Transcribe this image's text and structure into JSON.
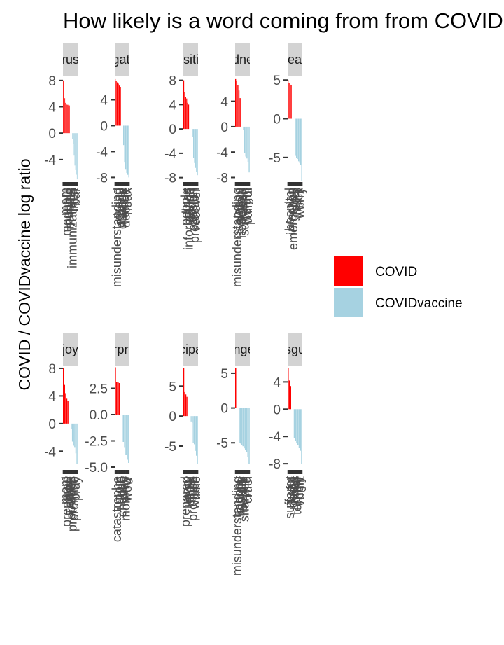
{
  "chart_data": {
    "type": "bar",
    "title": "How likely is a word coming from from COVID",
    "ylabel": "COVID / COVIDvaccine log ratio",
    "legend": {
      "position": "right",
      "entries": [
        {
          "label": "COVID",
          "color": "#ff0000"
        },
        {
          "label": "COVIDvaccine",
          "color": "#a6d2e1"
        }
      ]
    },
    "panels": [
      {
        "strip": "trust",
        "ylim": [
          -7.2,
          8.3
        ],
        "yticks": [
          8,
          4,
          0,
          -4
        ],
        "ytick_labels": [
          "8",
          "4",
          "0",
          "-4"
        ],
        "values": [
          8.0,
          5.4,
          5.3,
          4.6,
          4.4,
          4.3,
          4.3,
          4.2,
          4.2,
          0.0,
          0.0,
          0.0,
          -0.9,
          -1.6,
          -3.4,
          -4.9,
          -5.6,
          -6.3,
          -7.0
        ],
        "xlabels": [
          "mom",
          "magnets",
          "people",
          "nursing",
          "jobs",
          "immunizations",
          "trust",
          "bar"
        ]
      },
      {
        "strip": "negative",
        "ylim": [
          -8.5,
          7.3
        ],
        "yticks": [
          4,
          0,
          -4,
          -8
        ],
        "ytick_labels": [
          "4",
          "0",
          "-4",
          "-8"
        ],
        "values": [
          7.2,
          6.9,
          6.7,
          6.5,
          6.2,
          6.0,
          0.0,
          0.0,
          -3.0,
          -5.7,
          -6.8,
          -7.3,
          -7.6,
          -8.0
        ],
        "xlabels": [
          "misunderstanding",
          "dread",
          "anxiety",
          "dosage",
          "worry",
          "decline",
          "hoax"
        ]
      },
      {
        "strip": "positive",
        "ylim": [
          -8.5,
          8.3
        ],
        "yticks": [
          8,
          4,
          0,
          -4,
          -8
        ],
        "ytick_labels": [
          "8",
          "4",
          "0",
          "-4",
          "-8"
        ],
        "values": [
          8.0,
          6.0,
          5.2,
          5.0,
          4.3,
          4.0,
          0.0,
          0.0,
          0.0,
          -1.3,
          -4.8,
          -5.6,
          -6.4,
          -7.0,
          -7.6
        ],
        "xlabels": [
          "people",
          "lines",
          "information",
          "nurse",
          "doctor",
          "passion",
          "protection",
          "recover"
        ]
      },
      {
        "strip": "sadness",
        "ylim": [
          -8.5,
          7.6
        ],
        "yticks": [
          4,
          0,
          -4,
          -8
        ],
        "ytick_labels": [
          "4",
          "0",
          "-4",
          "-8"
        ],
        "values": [
          7.5,
          7.2,
          6.6,
          5.7,
          4.5,
          0.0,
          0.0,
          -0.5,
          -4.1,
          -4.7,
          -5.0,
          -5.6,
          -7.2
        ],
        "xlabels": [
          "misunderstanding",
          "isolation",
          "widow",
          "hopeless",
          "sick",
          "suffering",
          "weight",
          "painful"
        ]
      },
      {
        "strip": "fear",
        "ylim": [
          -8.0,
          5.2
        ],
        "yticks": [
          5,
          0,
          -5
        ],
        "ytick_labels": [
          "5",
          "0",
          "-5"
        ],
        "values": [
          5.0,
          4.6,
          4.4,
          4.3,
          0.0,
          0.0,
          0.0,
          -4.8,
          -5.1,
          -5.2,
          -5.5,
          -5.7,
          -6.0,
          -8.0
        ],
        "xlabels": [
          "hospital",
          "infection",
          "emergency",
          "fever",
          "injury",
          "sick",
          "worry"
        ]
      },
      {
        "strip": "joy",
        "ylim": [
          -6.3,
          8.3
        ],
        "yticks": [
          8,
          4,
          0,
          -4
        ],
        "ytick_labels": [
          "8",
          "4",
          "0",
          "-4"
        ],
        "values": [
          8.0,
          5.6,
          4.4,
          3.6,
          3.3,
          0.0,
          0.0,
          -0.8,
          -2.6,
          -3.2,
          -3.4,
          -4.3,
          -5.8
        ],
        "xlabels": [
          "mom",
          "prepared",
          "grow",
          "share",
          "obvious",
          "protection",
          "promise",
          "pray"
        ]
      },
      {
        "strip": "surprise",
        "ylim": [
          -5.0,
          4.6
        ],
        "yticks": [
          2.5,
          0,
          -2.5,
          -5
        ],
        "ytick_labels": [
          "2.5",
          "0.0",
          "-2.5",
          "-5.0"
        ],
        "values": [
          4.5,
          3.1,
          3.1,
          3.0,
          0.0,
          0.0,
          -2.6,
          -3.1,
          -3.8,
          -4.3,
          -4.6
        ],
        "xlabels": [
          "catastrophe",
          "mom",
          "hope",
          "chance",
          "pray",
          "mommy",
          "wow"
        ]
      },
      {
        "strip": "anticipation",
        "ylim": [
          -8.5,
          8.3
        ],
        "yticks": [
          5,
          0,
          -5
        ],
        "ytick_labels": [
          "5",
          "0",
          "-5"
        ],
        "values": [
          8.0,
          4.0,
          3.6,
          3.2,
          0.0,
          0.0,
          0.0,
          -0.9,
          -1.1,
          -4.5,
          -4.7,
          -5.8,
          -6.6,
          -8.0
        ],
        "xlabels": [
          "prepared",
          "mom",
          "grow",
          "begin",
          "lines",
          "promise",
          "watch",
          "time"
        ]
      },
      {
        "strip": "anger",
        "ylim": [
          -8.5,
          6.0
        ],
        "yticks": [
          5,
          0,
          -5
        ],
        "ytick_labels": [
          "5",
          "0",
          "-5"
        ],
        "values": [
          5.8,
          0.0,
          0.0,
          -5.0,
          -5.1,
          -5.3,
          -5.5,
          -5.8,
          -6.0,
          -6.3,
          -7.0,
          -8.0
        ],
        "xlabels": [
          "misunderstanding",
          "agony",
          "fighting",
          "fury",
          "hostile",
          "sharpen",
          "wild",
          "cruel"
        ]
      },
      {
        "strip": "disgust",
        "ylim": [
          -8.5,
          6.3
        ],
        "yticks": [
          4,
          0,
          -4,
          -8
        ],
        "ytick_labels": [
          "4",
          "0",
          "-4",
          "-8"
        ],
        "values": [
          6.0,
          4.2,
          3.4,
          0.0,
          0.0,
          -4.2,
          -4.6,
          -4.9,
          -5.3,
          -5.7,
          -6.1,
          -8.0
        ],
        "xlabels": [
          "sufferer",
          "awful",
          "death",
          "hoax",
          "horror",
          "terrible",
          "ugly",
          "vomit"
        ]
      }
    ]
  }
}
